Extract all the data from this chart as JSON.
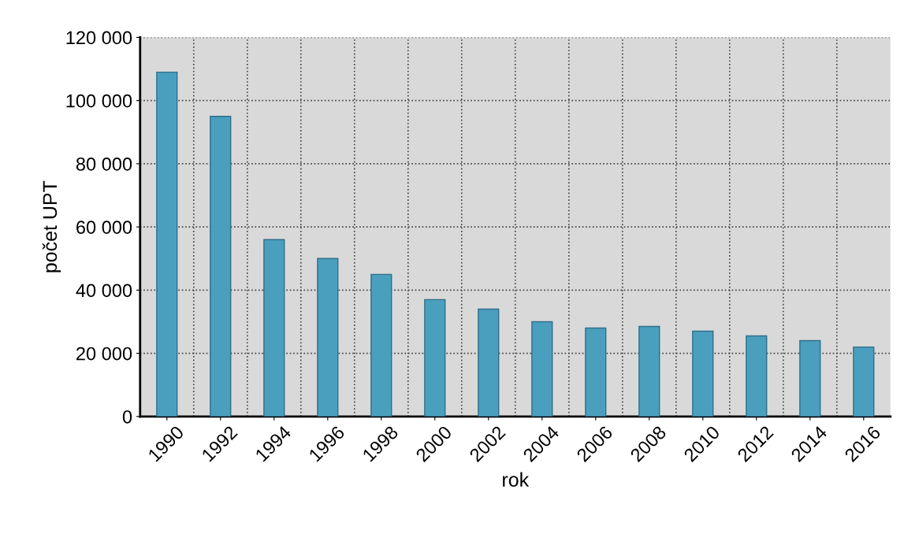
{
  "chart_data": {
    "type": "bar",
    "xlabel": "rok",
    "ylabel": "počet UPT",
    "categories": [
      "1990",
      "1992",
      "1994",
      "1996",
      "1998",
      "2000",
      "2002",
      "2004",
      "2006",
      "2008",
      "2010",
      "2012",
      "2014",
      "2016"
    ],
    "values": [
      109000,
      95000,
      56000,
      50000,
      45000,
      37000,
      34000,
      30000,
      28000,
      28500,
      27000,
      25500,
      24000,
      22000
    ],
    "color": "#4a9fbf",
    "ylim": [
      0,
      120000
    ],
    "yticks": [
      {
        "value": 0,
        "label": "0"
      },
      {
        "value": 20000,
        "label": "20 000"
      },
      {
        "value": 40000,
        "label": "40 000"
      },
      {
        "value": 60000,
        "label": "60 000"
      },
      {
        "value": 80000,
        "label": "80 000"
      },
      {
        "value": 100000,
        "label": "100 000"
      },
      {
        "value": 120000,
        "label": "120 000"
      }
    ],
    "grid": true,
    "legend": false
  }
}
